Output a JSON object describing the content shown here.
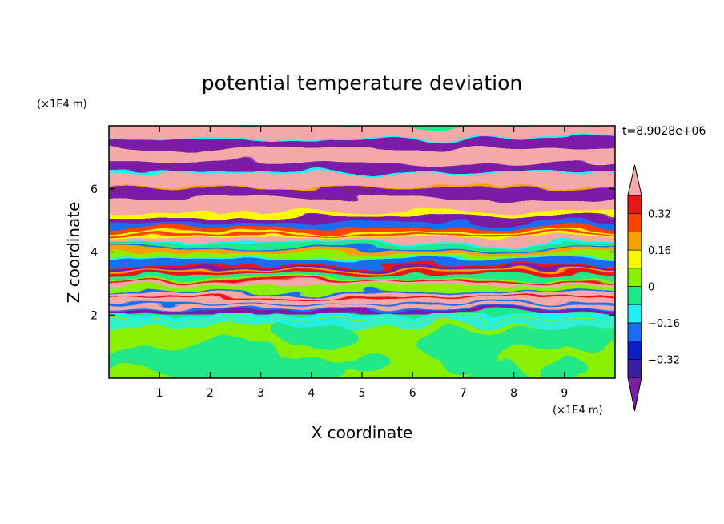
{
  "chart_data": {
    "type": "heatmap",
    "title": "potential temperature deviation",
    "xlabel": "X coordinate",
    "ylabel": "Z coordinate",
    "x_unit": "(×1E4 m)",
    "y_unit": "(×1E4 m)",
    "time_label": "t=8.9028e+06",
    "xlim": [
      0,
      10
    ],
    "ylim": [
      0,
      8
    ],
    "x_ticks": [
      1,
      2,
      3,
      4,
      5,
      6,
      7,
      8,
      9
    ],
    "y_ticks": [
      2,
      4,
      6
    ],
    "colorbar": {
      "labels": [
        "0.32",
        "0.16",
        "0",
        "−0.16",
        "−0.32"
      ],
      "label_values": [
        0.32,
        0.16,
        0,
        -0.16,
        -0.32
      ],
      "levels": [
        -0.4,
        -0.32,
        -0.24,
        -0.16,
        -0.08,
        0,
        0.08,
        0.16,
        0.24,
        0.32,
        0.4
      ],
      "colors": [
        "#7a1fa8",
        "#3a1fa0",
        "#0a1fbf",
        "#1e6cf2",
        "#22f0f0",
        "#20e88a",
        "#88f000",
        "#f8f800",
        "#f8a000",
        "#f84400",
        "#e81818",
        "#f4a8a8"
      ],
      "extend": "both"
    },
    "structure_note": ""
  }
}
